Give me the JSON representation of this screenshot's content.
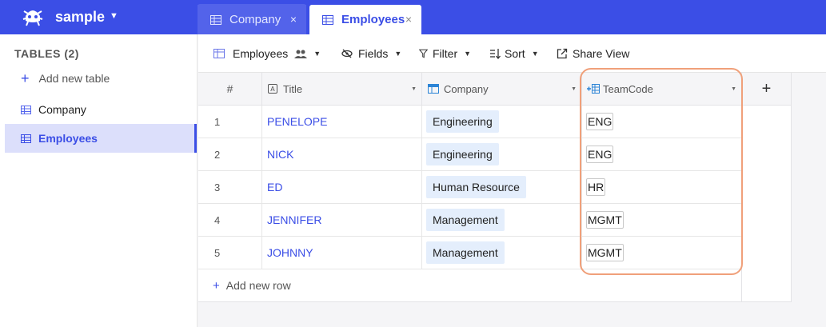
{
  "app": {
    "project_name": "sample",
    "tabs": [
      {
        "label": "Company",
        "active": false
      },
      {
        "label": "Employees",
        "active": true
      }
    ],
    "tab_close_glyph": "×"
  },
  "sidebar": {
    "title": "TABLES (2)",
    "add_label": "Add new table",
    "items": [
      {
        "label": "Company",
        "active": false
      },
      {
        "label": "Employees",
        "active": true
      }
    ]
  },
  "toolbar": {
    "view_name": "Employees",
    "fields_label": "Fields",
    "filter_label": "Filter",
    "sort_label": "Sort",
    "share_label": "Share View"
  },
  "grid": {
    "columns": [
      {
        "label": "#"
      },
      {
        "label": "Title",
        "icon": "text-field-icon"
      },
      {
        "label": "Company",
        "icon": "link-field-icon"
      },
      {
        "label": "TeamCode",
        "icon": "lookup-field-icon"
      }
    ],
    "add_column_glyph": "+",
    "rows": [
      {
        "num": "1",
        "title": "PENELOPE",
        "company": "Engineering",
        "teamcode": "ENG"
      },
      {
        "num": "2",
        "title": "NICK",
        "company": "Engineering",
        "teamcode": "ENG"
      },
      {
        "num": "3",
        "title": "ED",
        "company": "Human Resource",
        "teamcode": "HR"
      },
      {
        "num": "4",
        "title": "JENNIFER",
        "company": "Management",
        "teamcode": "MGMT"
      },
      {
        "num": "5",
        "title": "JOHNNY",
        "company": "Management",
        "teamcode": "MGMT"
      }
    ],
    "add_row_label": "Add new row"
  },
  "colors": {
    "accent": "#3b4ee6",
    "chip_bg": "#e4eefc",
    "highlight": "#f0a07a"
  }
}
